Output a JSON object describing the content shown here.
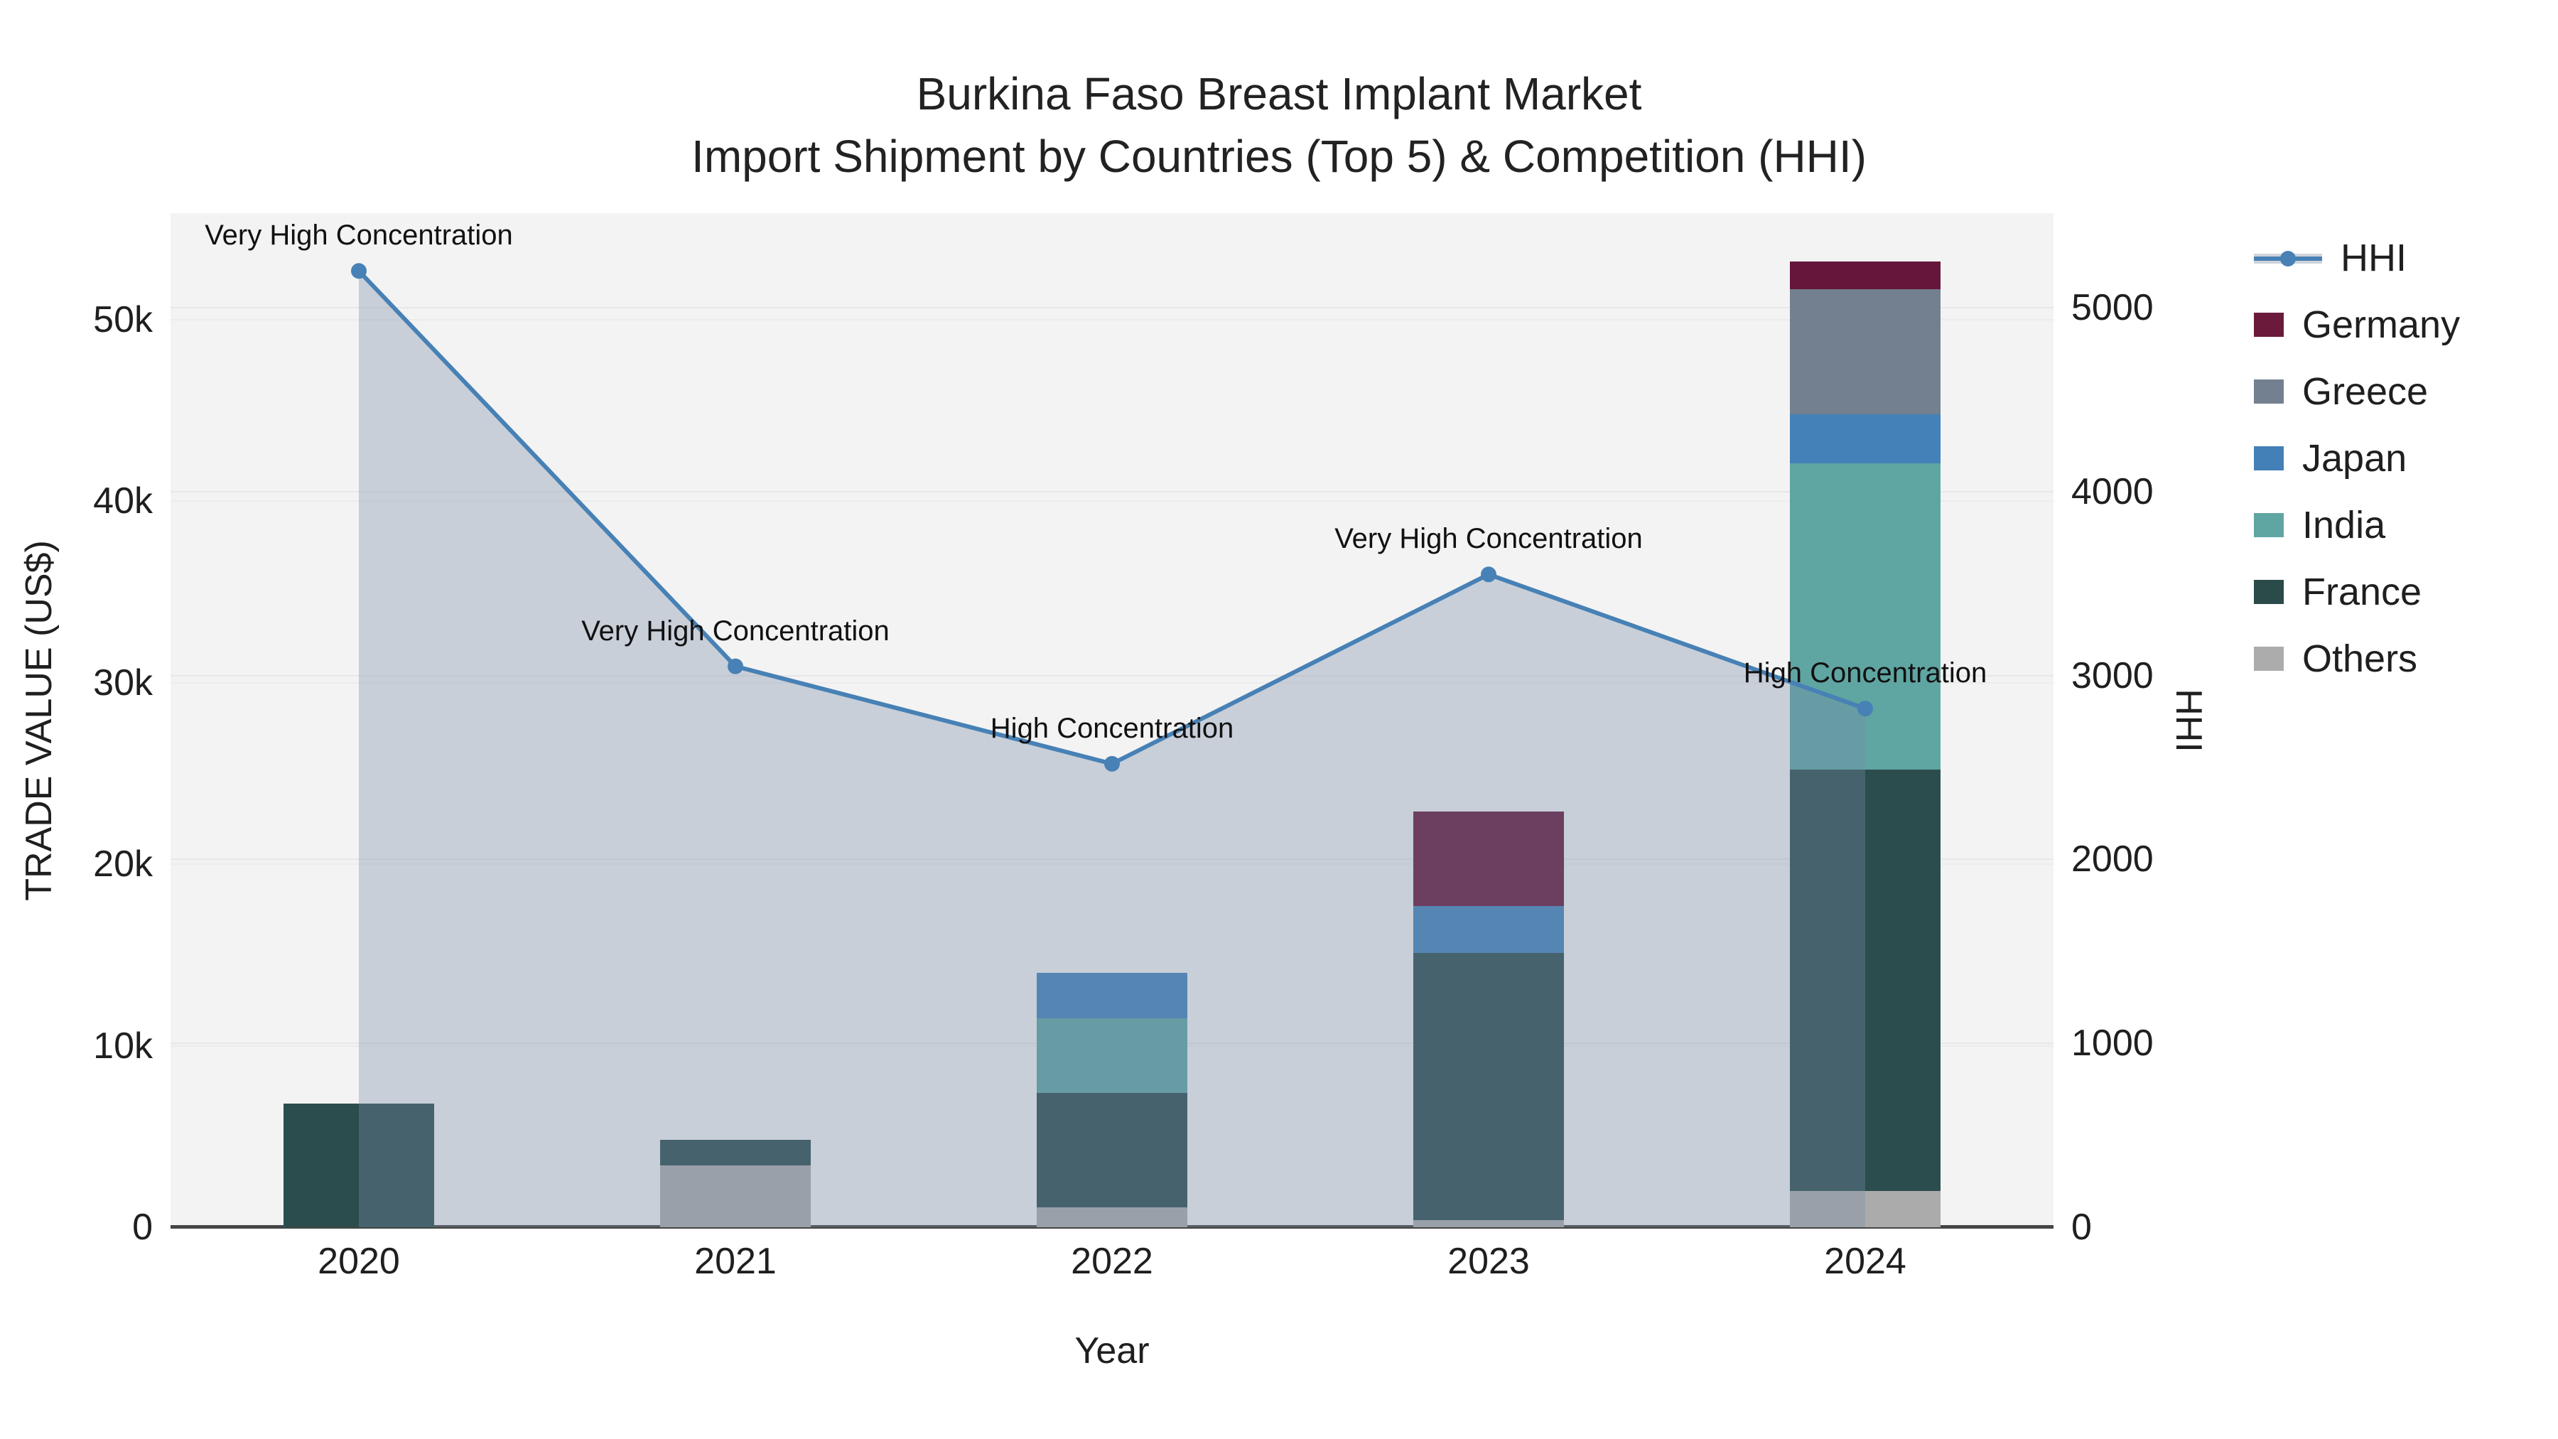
{
  "title": {
    "line1": "Burkina Faso Breast Implant Market",
    "line2": "Import Shipment by Countries (Top 5) & Competition (HHI)"
  },
  "axes": {
    "x": {
      "title": "Year",
      "ticks": [
        "2020",
        "2021",
        "2022",
        "2023",
        "2024"
      ]
    },
    "y_left": {
      "title": "TRADE VALUE (US$)",
      "ticks": [
        "0",
        "10k",
        "20k",
        "30k",
        "40k",
        "50k"
      ],
      "tick_values": [
        0,
        10000,
        20000,
        30000,
        40000,
        50000
      ],
      "max_visible": 55874
    },
    "y_right": {
      "title": "HHI",
      "ticks": [
        "0",
        "1000",
        "2000",
        "3000",
        "4000",
        "5000"
      ],
      "tick_values": [
        0,
        1000,
        2000,
        3000,
        4000,
        5000
      ],
      "max_visible": 5514
    }
  },
  "chart_data": {
    "type": "bar+line",
    "bar_mode": "stacked",
    "categories": [
      "2020",
      "2021",
      "2022",
      "2023",
      "2024"
    ],
    "xlabel": "Year",
    "ylabel_left": "TRADE VALUE (US$)",
    "ylabel_right": "HHI",
    "ylim_left": [
      0,
      55874
    ],
    "ylim_right": [
      0,
      5514
    ],
    "grid": true,
    "legend_position": "right",
    "series": [
      {
        "name": "Others",
        "type": "bar",
        "color": "#ababab",
        "values": [
          0,
          3400,
          1100,
          400,
          2000
        ]
      },
      {
        "name": "France",
        "type": "bar",
        "color": "#2c4d4e",
        "values": [
          6800,
          1400,
          6300,
          14700,
          23200
        ]
      },
      {
        "name": "India",
        "type": "bar",
        "color": "#5fa5a2",
        "values": [
          0,
          0,
          4100,
          0,
          16900
        ]
      },
      {
        "name": "Japan",
        "type": "bar",
        "color": "#4381b8",
        "values": [
          0,
          0,
          2500,
          2600,
          2700
        ]
      },
      {
        "name": "Greece",
        "type": "bar",
        "color": "#72808f",
        "values": [
          0,
          0,
          0,
          0,
          6900
        ]
      },
      {
        "name": "Germany",
        "type": "bar",
        "color": "#66163a",
        "values": [
          0,
          0,
          0,
          5200,
          1500
        ]
      }
    ],
    "hhi_line": {
      "name": "HHI",
      "axis": "right",
      "color": "#4781b5",
      "area_fill": "rgba(120,140,168,0.35)",
      "values": [
        5200,
        3050,
        2520,
        3550,
        2820
      ]
    },
    "annotations": [
      {
        "category": "2020",
        "text": "Very High Concentration"
      },
      {
        "category": "2021",
        "text": "Very High Concentration"
      },
      {
        "category": "2022",
        "text": "High Concentration"
      },
      {
        "category": "2023",
        "text": "Very High Concentration"
      },
      {
        "category": "2024",
        "text": "High Concentration"
      }
    ]
  },
  "legend": {
    "items": [
      {
        "label": "HHI",
        "kind": "line"
      },
      {
        "label": "Germany",
        "kind": "swatch",
        "color": "#6b1a3c"
      },
      {
        "label": "Greece",
        "kind": "swatch",
        "color": "#72808f"
      },
      {
        "label": "Japan",
        "kind": "swatch",
        "color": "#4380b7"
      },
      {
        "label": "India",
        "kind": "swatch",
        "color": "#5fa5a2"
      },
      {
        "label": "France",
        "kind": "swatch",
        "color": "#2b4a4a"
      },
      {
        "label": "Others",
        "kind": "swatch",
        "color": "#acacac"
      }
    ]
  },
  "colors": {
    "plot_bg": "#f3f3f3",
    "axis_line": "#454545",
    "grid_left": "#ececec",
    "grid_right": "#e7e7e7",
    "text": "#1f1f1f",
    "hhi_line": "#4781b5",
    "hhi_fill": "rgba(120,140,168,0.35)"
  }
}
